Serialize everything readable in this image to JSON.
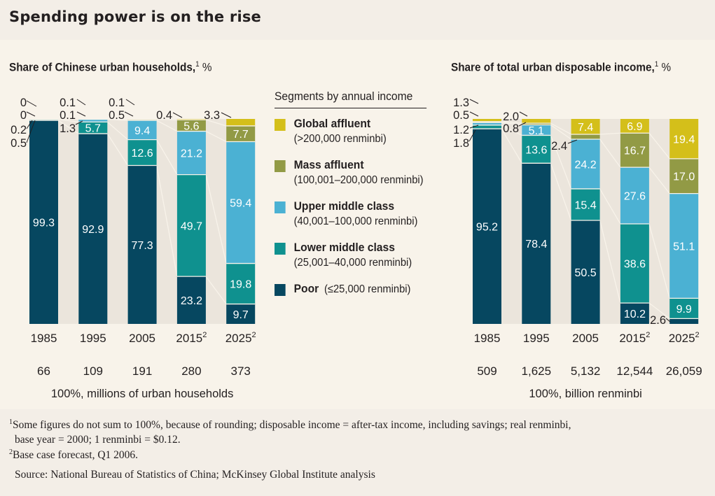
{
  "title": "Spending power is on the rise",
  "legend": {
    "heading": "Segments by annual income",
    "items": [
      {
        "key": "global_affluent",
        "name": "Global affluent",
        "range": "(>200,000 renminbi)",
        "color": "#d4bf1a"
      },
      {
        "key": "mass_affluent",
        "name": "Mass affluent",
        "range": "(100,001–200,000 renminbi)",
        "color": "#929a45"
      },
      {
        "key": "upper_middle",
        "name": "Upper middle class",
        "range": "(40,001–100,000 renminbi)",
        "color": "#4bb1d3"
      },
      {
        "key": "lower_middle",
        "name": "Lower middle class",
        "range": "(25,001–40,000 renminbi)",
        "color": "#0f918f"
      },
      {
        "key": "poor",
        "name": "Poor",
        "range": "(≤25,000 renminbi)",
        "color": "#064760"
      }
    ]
  },
  "chart_data": [
    {
      "type": "bar",
      "stacked": true,
      "title": "Share of Chinese urban households,",
      "title_sup": "1",
      "title_unit": "%",
      "categories": [
        "1985",
        "1995",
        "2005",
        "2015",
        "2025"
      ],
      "category_sups": [
        "",
        "",
        "",
        "2",
        "2"
      ],
      "totals": [
        "66",
        "109",
        "191",
        "280",
        "373"
      ],
      "totals_label": "100%, millions of urban households",
      "ylim": [
        0,
        100
      ],
      "series": [
        {
          "name": "Poor",
          "values": [
            99.3,
            92.9,
            77.3,
            23.2,
            9.7
          ]
        },
        {
          "name": "Lower middle class",
          "values": [
            0.5,
            5.7,
            12.6,
            49.7,
            19.8
          ]
        },
        {
          "name": "Upper middle class",
          "values": [
            0.2,
            1.3,
            9.4,
            21.2,
            59.4
          ]
        },
        {
          "name": "Mass affluent",
          "values": [
            0,
            0.1,
            0.5,
            5.6,
            7.7
          ]
        },
        {
          "name": "Global affluent",
          "values": [
            0,
            0.1,
            0.1,
            0.4,
            3.3
          ]
        }
      ],
      "outside_labels": [
        [
          "0.5",
          "0.2",
          "0",
          "0"
        ],
        [
          "1.3",
          "0.1",
          "0.1"
        ],
        [
          "0.5",
          "0.1"
        ],
        [
          "0.4"
        ],
        [
          "3.3"
        ]
      ]
    },
    {
      "type": "bar",
      "stacked": true,
      "title": "Share of total urban disposable income,",
      "title_sup": "1",
      "title_unit": "%",
      "categories": [
        "1985",
        "1995",
        "2005",
        "2015",
        "2025"
      ],
      "category_sups": [
        "",
        "",
        "",
        "2",
        "2"
      ],
      "totals": [
        "509",
        "1,625",
        "5,132",
        "12,544",
        "26,059"
      ],
      "totals_label": "100%, billion renminbi",
      "ylim": [
        0,
        100
      ],
      "series": [
        {
          "name": "Poor",
          "values": [
            95.2,
            78.4,
            50.5,
            10.2,
            2.6
          ]
        },
        {
          "name": "Lower middle class",
          "values": [
            1.8,
            13.6,
            15.4,
            38.6,
            9.9
          ]
        },
        {
          "name": "Upper middle class",
          "values": [
            1.2,
            5.1,
            24.2,
            27.6,
            51.1
          ]
        },
        {
          "name": "Mass affluent",
          "values": [
            0.5,
            0.8,
            2.4,
            16.7,
            17.0
          ]
        },
        {
          "name": "Global affluent",
          "values": [
            1.3,
            2.0,
            7.4,
            6.9,
            19.4
          ]
        }
      ],
      "outside_labels": [
        [
          "1.8",
          "1.2",
          "0.5",
          "1.3"
        ],
        [
          "0.8",
          "2.0"
        ],
        [
          "2.4"
        ],
        [],
        [
          "2.6"
        ]
      ]
    }
  ],
  "footnotes": {
    "note1_sup": "1",
    "note1_line1": "Some figures do not sum to 100%, because of rounding; disposable income = after-tax income, including savings; real renminbi,",
    "note1_line2": "base year = 2000; 1 renminbi = $0.12.",
    "note2_sup": "2",
    "note2": "Base case forecast, Q1 2006.",
    "source": "Source: National Bureau of Statistics of China; McKinsey Global Institute analysis"
  }
}
